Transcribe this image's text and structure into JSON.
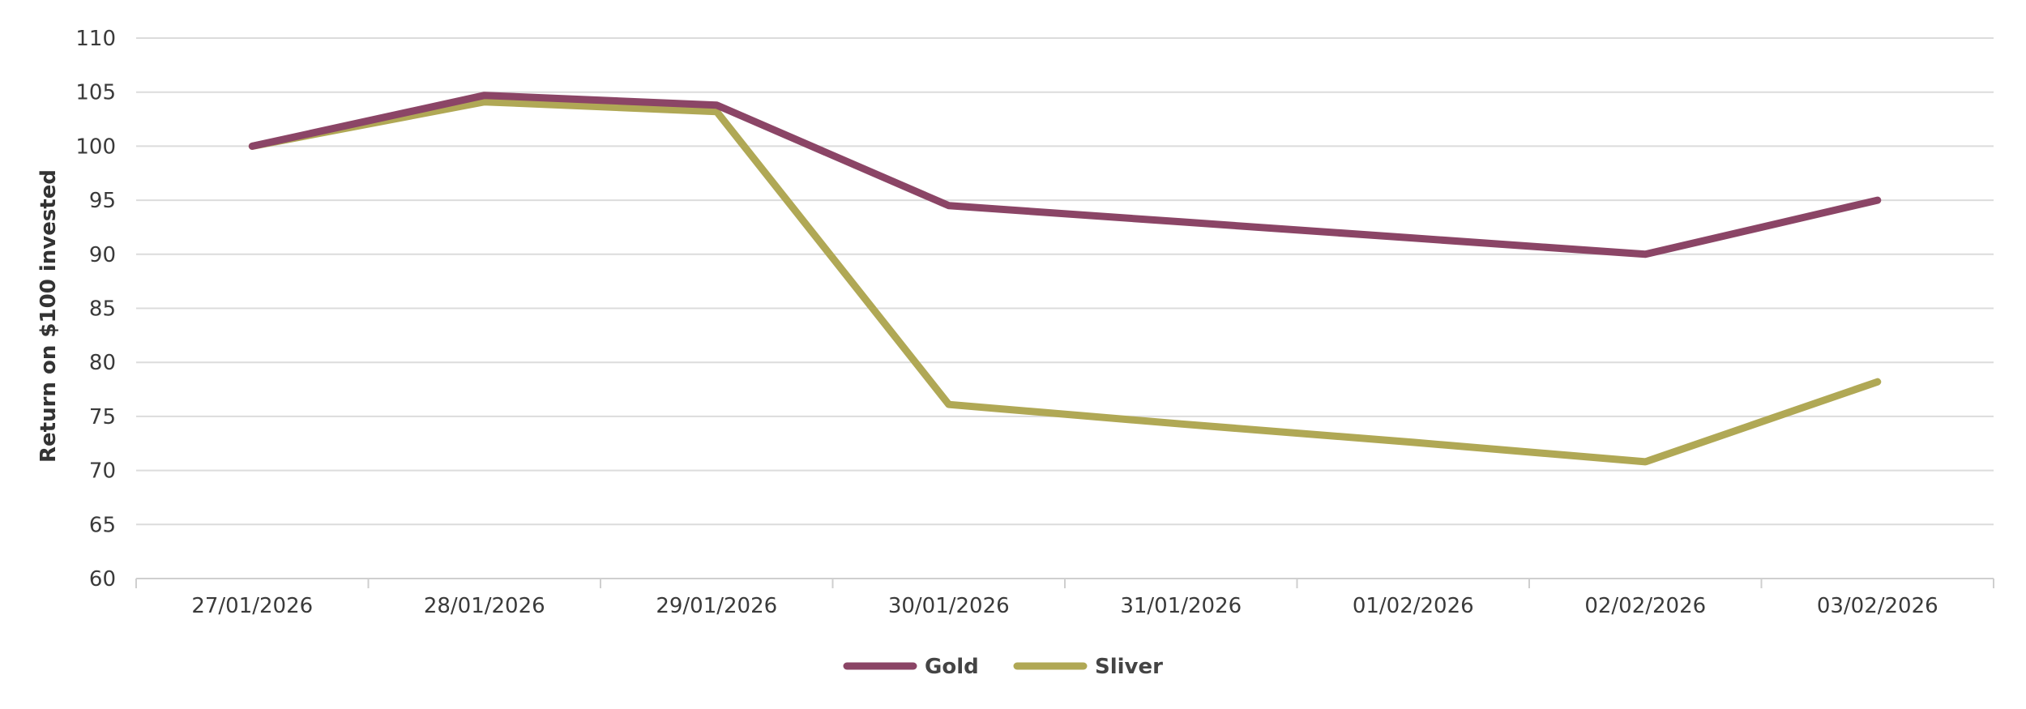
{
  "chart_data": {
    "type": "line",
    "title": "",
    "xlabel": "",
    "ylabel": "Return on $100 invested",
    "ylim": [
      60,
      110
    ],
    "yticks": [
      60,
      65,
      70,
      75,
      80,
      85,
      90,
      95,
      100,
      105,
      110
    ],
    "categories": [
      "27/01/2026",
      "28/01/2026",
      "29/01/2026",
      "30/01/2026",
      "31/01/2026",
      "01/02/2026",
      "02/02/2026",
      "03/02/2026"
    ],
    "grid": true,
    "legend_position": "bottom",
    "series": [
      {
        "name": "Gold",
        "color": "#8b4566",
        "values": [
          100,
          104.7,
          103.8,
          94.5,
          93.0,
          91.5,
          90.0,
          95.0
        ]
      },
      {
        "name": "Sliver",
        "color": "#b0a855",
        "values": [
          100,
          104.1,
          103.2,
          76.1,
          74.3,
          72.6,
          70.8,
          78.2
        ]
      }
    ]
  }
}
